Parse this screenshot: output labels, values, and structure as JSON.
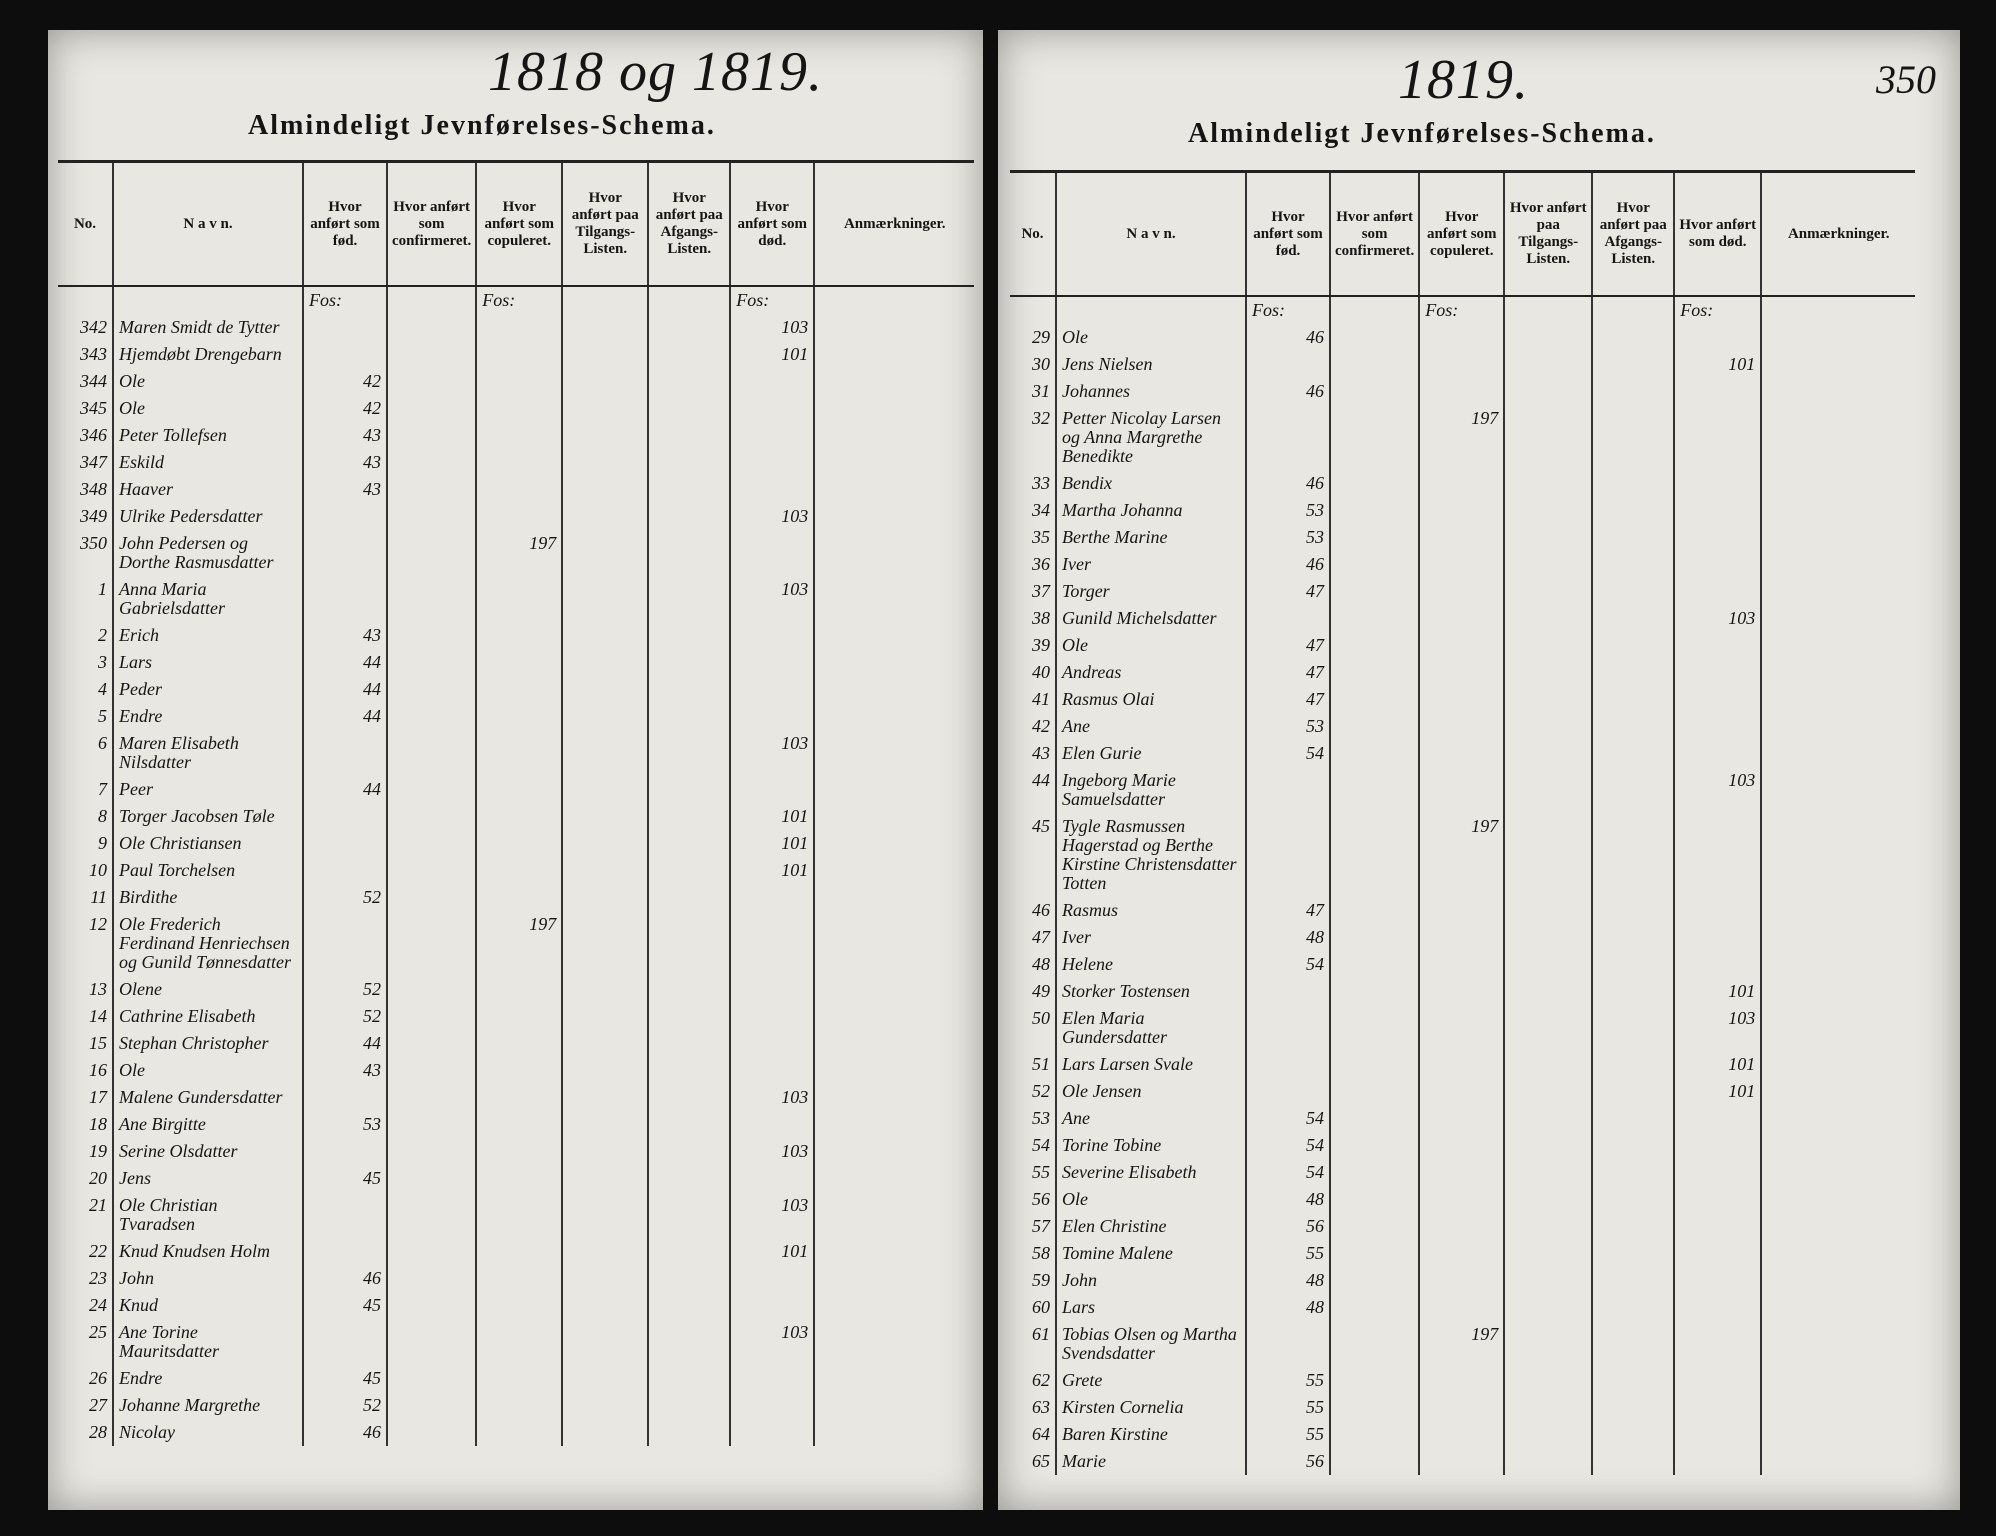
{
  "left_page": {
    "year": "1818 og 1819.",
    "title": "Almindeligt Jevnførelses-Schema.",
    "columns": [
      "No.",
      "N a v n.",
      "Hvor anført som fød.",
      "Hvor anført som confirmeret.",
      "Hvor anført som copuleret.",
      "Hvor anført paa Tilgangs-Listen.",
      "Hvor anført paa Afgangs-Listen.",
      "Hvor anført som død.",
      "Anmærkninger."
    ],
    "folio": {
      "fod": "Fos:",
      "cop": "Fos:",
      "dod": "Fos:"
    },
    "rows": [
      {
        "no": "342",
        "name": "Maren Smidt de Tytter",
        "dod": "103"
      },
      {
        "no": "343",
        "name": "Hjemdøbt Drengebarn",
        "dod": "101"
      },
      {
        "no": "344",
        "name": "Ole",
        "fod": "42"
      },
      {
        "no": "345",
        "name": "Ole",
        "fod": "42"
      },
      {
        "no": "346",
        "name": "Peter Tollefsen",
        "fod": "43"
      },
      {
        "no": "347",
        "name": "Eskild",
        "fod": "43"
      },
      {
        "no": "348",
        "name": "Haaver",
        "fod": "43"
      },
      {
        "no": "349",
        "name": "Ulrike Pedersdatter",
        "dod": "103"
      },
      {
        "no": "350",
        "name": "John Pedersen og Dorthe Rasmusdatter",
        "cop": "197"
      },
      {
        "no": "1",
        "name": "Anna Maria Gabrielsdatter",
        "dod": "103"
      },
      {
        "no": "2",
        "name": "Erich",
        "fod": "43"
      },
      {
        "no": "3",
        "name": "Lars",
        "fod": "44"
      },
      {
        "no": "4",
        "name": "Peder",
        "fod": "44"
      },
      {
        "no": "5",
        "name": "Endre",
        "fod": "44"
      },
      {
        "no": "6",
        "name": "Maren Elisabeth Nilsdatter",
        "dod": "103"
      },
      {
        "no": "7",
        "name": "Peer",
        "fod": "44"
      },
      {
        "no": "8",
        "name": "Torger Jacobsen Tøle",
        "dod": "101"
      },
      {
        "no": "9",
        "name": "Ole Christiansen",
        "dod": "101"
      },
      {
        "no": "10",
        "name": "Paul Torchelsen",
        "dod": "101"
      },
      {
        "no": "11",
        "name": "Birdithe",
        "fod": "52"
      },
      {
        "no": "12",
        "name": "Ole Frederich Ferdinand Henriechsen og Gunild Tønnesdatter",
        "cop": "197"
      },
      {
        "no": "13",
        "name": "Olene",
        "fod": "52"
      },
      {
        "no": "14",
        "name": "Cathrine Elisabeth",
        "fod": "52"
      },
      {
        "no": "15",
        "name": "Stephan Christopher",
        "fod": "44"
      },
      {
        "no": "16",
        "name": "Ole",
        "fod": "43"
      },
      {
        "no": "17",
        "name": "Malene Gundersdatter",
        "dod": "103"
      },
      {
        "no": "18",
        "name": "Ane Birgitte",
        "fod": "53"
      },
      {
        "no": "19",
        "name": "Serine Olsdatter",
        "dod": "103"
      },
      {
        "no": "20",
        "name": "Jens",
        "fod": "45"
      },
      {
        "no": "21",
        "name": "Ole Christian Tvaradsen",
        "dod": "103"
      },
      {
        "no": "22",
        "name": "Knud Knudsen Holm",
        "dod": "101"
      },
      {
        "no": "23",
        "name": "John",
        "fod": "46"
      },
      {
        "no": "24",
        "name": "Knud",
        "fod": "45"
      },
      {
        "no": "25",
        "name": "Ane Torine Mauritsdatter",
        "dod": "103"
      },
      {
        "no": "26",
        "name": "Endre",
        "fod": "45"
      },
      {
        "no": "27",
        "name": "Johanne Margrethe",
        "fod": "52"
      },
      {
        "no": "28",
        "name": "Nicolay",
        "fod": "46"
      }
    ]
  },
  "right_page": {
    "year": "1819.",
    "page_number": "350",
    "title": "Almindeligt Jevnførelses-Schema.",
    "columns": [
      "No.",
      "N a v n.",
      "Hvor anført som fød.",
      "Hvor anført som confirmeret.",
      "Hvor anført som copuleret.",
      "Hvor anført paa Tilgangs-Listen.",
      "Hvor anført paa Afgangs-Listen.",
      "Hvor anført som død.",
      "Anmærkninger."
    ],
    "folio": {
      "fod": "Fos:",
      "cop": "Fos:",
      "dod": "Fos:"
    },
    "rows": [
      {
        "no": "29",
        "name": "Ole",
        "fod": "46"
      },
      {
        "no": "30",
        "name": "Jens Nielsen",
        "dod": "101"
      },
      {
        "no": "31",
        "name": "Johannes",
        "fod": "46"
      },
      {
        "no": "32",
        "name": "Petter Nicolay Larsen og Anna Margrethe Benedikte",
        "cop": "197"
      },
      {
        "no": "33",
        "name": "Bendix",
        "fod": "46"
      },
      {
        "no": "34",
        "name": "Martha Johanna",
        "fod": "53"
      },
      {
        "no": "35",
        "name": "Berthe Marine",
        "fod": "53"
      },
      {
        "no": "36",
        "name": "Iver",
        "fod": "46"
      },
      {
        "no": "37",
        "name": "Torger",
        "fod": "47"
      },
      {
        "no": "38",
        "name": "Gunild Michelsdatter",
        "dod": "103"
      },
      {
        "no": "39",
        "name": "Ole",
        "fod": "47"
      },
      {
        "no": "40",
        "name": "Andreas",
        "fod": "47"
      },
      {
        "no": "41",
        "name": "Rasmus Olai",
        "fod": "47"
      },
      {
        "no": "42",
        "name": "Ane",
        "fod": "53"
      },
      {
        "no": "43",
        "name": "Elen Gurie",
        "fod": "54"
      },
      {
        "no": "44",
        "name": "Ingeborg Marie Samuelsdatter",
        "dod": "103"
      },
      {
        "no": "45",
        "name": "Tygle Rasmussen Hagerstad og Berthe Kirstine Christensdatter Totten",
        "cop": "197"
      },
      {
        "no": "46",
        "name": "Rasmus",
        "fod": "47"
      },
      {
        "no": "47",
        "name": "Iver",
        "fod": "48"
      },
      {
        "no": "48",
        "name": "Helene",
        "fod": "54"
      },
      {
        "no": "49",
        "name": "Storker Tostensen",
        "dod": "101"
      },
      {
        "no": "50",
        "name": "Elen Maria Gundersdatter",
        "dod": "103"
      },
      {
        "no": "51",
        "name": "Lars Larsen Svale",
        "dod": "101"
      },
      {
        "no": "52",
        "name": "Ole Jensen",
        "dod": "101"
      },
      {
        "no": "53",
        "name": "Ane",
        "fod": "54"
      },
      {
        "no": "54",
        "name": "Torine Tobine",
        "fod": "54"
      },
      {
        "no": "55",
        "name": "Severine Elisabeth",
        "fod": "54"
      },
      {
        "no": "56",
        "name": "Ole",
        "fod": "48"
      },
      {
        "no": "57",
        "name": "Elen Christine",
        "fod": "56"
      },
      {
        "no": "58",
        "name": "Tomine Malene",
        "fod": "55"
      },
      {
        "no": "59",
        "name": "John",
        "fod": "48"
      },
      {
        "no": "60",
        "name": "Lars",
        "fod": "48"
      },
      {
        "no": "61",
        "name": "Tobias Olsen og Martha Svendsdatter",
        "cop": "197"
      },
      {
        "no": "62",
        "name": "Grete",
        "fod": "55"
      },
      {
        "no": "63",
        "name": "Kirsten Cornelia",
        "fod": "55"
      },
      {
        "no": "64",
        "name": "Baren Kirstine",
        "fod": "55"
      },
      {
        "no": "65",
        "name": "Marie",
        "fod": "56"
      }
    ]
  }
}
